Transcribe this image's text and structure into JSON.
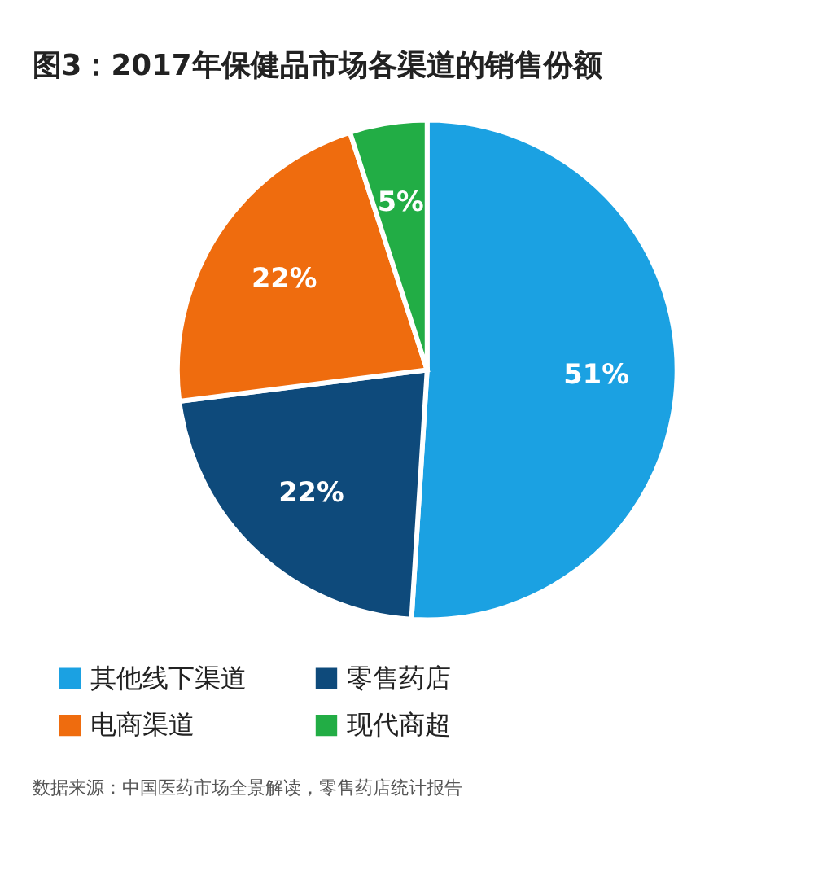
{
  "chart_data": {
    "type": "pie",
    "title": "图3：2017年保健品市场各渠道的销售份额",
    "categories": [
      "其他线下渠道",
      "零售药店",
      "电商渠道",
      "现代商超"
    ],
    "values": [
      51,
      22,
      22,
      5
    ],
    "colors": [
      "#1ba1e2",
      "#0e4a7b",
      "#ef6c0e",
      "#22ad45"
    ],
    "value_labels": [
      "51%",
      "22%",
      "22%",
      "5%"
    ],
    "legend": "bottom",
    "annotations": [
      "数据来源：中国医药市场全景解读，零售药店统计报告"
    ]
  }
}
